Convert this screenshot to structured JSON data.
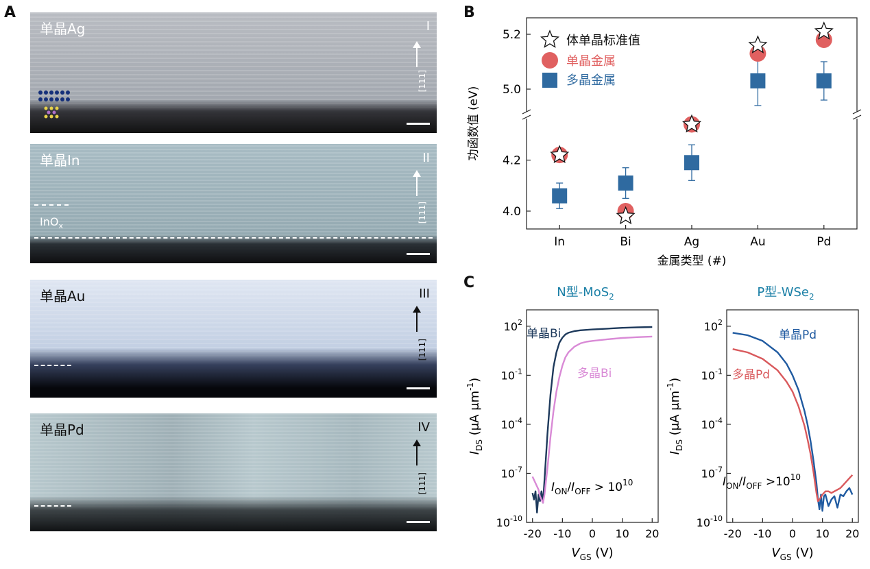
{
  "panel_labels": {
    "a": "A",
    "b": "B",
    "c": "C"
  },
  "panelA": {
    "images": [
      {
        "label": "单晶Ag",
        "roman": "I",
        "direction": "[111]"
      },
      {
        "label": "单晶In",
        "roman": "II",
        "direction": "[111]",
        "oxide": "InO",
        "oxide_sub": "x"
      },
      {
        "label": "单晶Au",
        "roman": "III",
        "direction": "[111]"
      },
      {
        "label": "单晶Pd",
        "roman": "IV",
        "direction": "[111]"
      }
    ]
  },
  "chart_data": [
    {
      "type": "scatter",
      "panel": "B",
      "title": "",
      "xlabel": "金属类型 (#)",
      "ylabel": "功函数值 (eV)",
      "categories": [
        "In",
        "Bi",
        "Ag",
        "Au",
        "Pd"
      ],
      "axis_break": true,
      "lower_ylim": [
        3.93,
        4.36
      ],
      "upper_ylim": [
        4.92,
        5.26
      ],
      "lower_ticks": [
        "4.0",
        "4.2"
      ],
      "upper_ticks": [
        "5.0",
        "5.2"
      ],
      "legend_position": "top-left",
      "series": [
        {
          "name": "体单晶标准值",
          "marker": "star",
          "values": [
            4.22,
            3.98,
            4.34,
            5.16,
            5.21
          ]
        },
        {
          "name": "单晶金属",
          "marker": "circle",
          "color": "#e06060",
          "values": [
            4.22,
            4.0,
            4.34,
            5.13,
            5.18
          ]
        },
        {
          "name": "多晶金属",
          "marker": "square",
          "color": "#2f6aa0",
          "values": [
            4.06,
            4.11,
            4.19,
            5.03,
            5.03
          ],
          "errors": [
            0.05,
            0.06,
            0.07,
            0.09,
            0.07
          ]
        }
      ]
    },
    {
      "type": "line",
      "panel": "C-left",
      "title": "N型-MoS",
      "title_sub": "2",
      "xlabel": "V",
      "xlabel_sub": "GS",
      "xlabel_unit": "(V)",
      "ylabel": "I",
      "ylabel_sub": "DS",
      "ylabel_unit": "(μA μm",
      "ylabel_sup": "-1",
      "ylabel_close": ")",
      "xlim": [
        -22,
        22
      ],
      "x_ticks": [
        "-20",
        "-10",
        "0",
        "10",
        "20"
      ],
      "ylim_log10": [
        -10,
        3
      ],
      "y_ticks": [
        {
          "base": "10",
          "exp": "2"
        },
        {
          "base": "10",
          "exp": "-1"
        },
        {
          "base": "10",
          "exp": "-4"
        },
        {
          "base": "10",
          "exp": "-7"
        },
        {
          "base": "10",
          "exp": "-10"
        }
      ],
      "annotation": {
        "i": "I",
        "on": "ON",
        "slash": "/I",
        "off": "OFF",
        "gt": " > 10",
        "exp": "10"
      },
      "series": [
        {
          "name": "单晶Bi",
          "color": "#1e3a5c",
          "x": [
            -20,
            -19.5,
            -19,
            -18.5,
            -18,
            -17.5,
            -17,
            -16.5,
            -16,
            -15,
            -14,
            -13,
            -12,
            -11,
            -10,
            -9,
            -8,
            -6,
            -4,
            0,
            5,
            10,
            15,
            20
          ],
          "log10y": [
            -8.2,
            -8.6,
            -8.1,
            -9.4,
            -8.3,
            -8.7,
            -8.1,
            -8.8,
            -7.4,
            -4.6,
            -2.2,
            -0.5,
            0.4,
            1.0,
            1.3,
            1.5,
            1.6,
            1.7,
            1.75,
            1.8,
            1.85,
            1.9,
            1.93,
            1.95
          ]
        },
        {
          "name": "多晶Bi",
          "color": "#d98ad6",
          "x": [
            -20,
            -19,
            -18,
            -17.5,
            -17,
            -16.5,
            -16,
            -15,
            -14,
            -13,
            -12,
            -11,
            -10,
            -9,
            -8,
            -6,
            -4,
            -2,
            0,
            5,
            10,
            15,
            20
          ],
          "log10y": [
            -7.2,
            -7.6,
            -8.0,
            -8.4,
            -8.6,
            -8.8,
            -8.3,
            -6.7,
            -4.8,
            -3.2,
            -2.0,
            -1.1,
            -0.4,
            0.1,
            0.4,
            0.75,
            0.95,
            1.05,
            1.1,
            1.2,
            1.28,
            1.33,
            1.37
          ]
        }
      ]
    },
    {
      "type": "line",
      "panel": "C-right",
      "title": "P型-WSe",
      "title_sub": "2",
      "xlabel": "V",
      "xlabel_sub": "GS",
      "xlabel_unit": "(V)",
      "ylabel": "I",
      "ylabel_sub": "DS",
      "ylabel_unit": "(μA μm",
      "ylabel_sup": "-1",
      "ylabel_close": ")",
      "xlim": [
        -22,
        22
      ],
      "x_ticks": [
        "-20",
        "-10",
        "0",
        "10",
        "20"
      ],
      "ylim_log10": [
        -10,
        3
      ],
      "y_ticks": [
        {
          "base": "10",
          "exp": "2"
        },
        {
          "base": "10",
          "exp": "-1"
        },
        {
          "base": "10",
          "exp": "-4"
        },
        {
          "base": "10",
          "exp": "-7"
        },
        {
          "base": "10",
          "exp": "-10"
        }
      ],
      "annotation": {
        "i": "I",
        "on": "ON",
        "slash": "/I",
        "off": "OFF",
        "gt": " >10",
        "exp": "10"
      },
      "series": [
        {
          "name": "单晶Pd",
          "color": "#1f5aa0",
          "x": [
            -20,
            -15,
            -10,
            -5,
            -2,
            0,
            2,
            4,
            5,
            6,
            7,
            8,
            8.5,
            9,
            9.5,
            10,
            10.5,
            11,
            12,
            13,
            14,
            15,
            16,
            17,
            18,
            19,
            20
          ],
          "log10y": [
            1.6,
            1.45,
            1.1,
            0.4,
            -0.3,
            -1.0,
            -1.9,
            -3.2,
            -4.0,
            -5.0,
            -6.2,
            -7.6,
            -8.6,
            -9.2,
            -8.3,
            -9.3,
            -8.4,
            -8.3,
            -9.0,
            -8.6,
            -8.4,
            -9.1,
            -8.3,
            -8.4,
            -8.1,
            -7.9,
            -8.3
          ]
        },
        {
          "name": "多晶Pd",
          "color": "#d9595c",
          "x": [
            -20,
            -15,
            -10,
            -5,
            -2,
            0,
            2,
            4,
            5,
            6,
            7,
            8,
            8.5,
            9,
            10,
            11,
            12,
            13,
            14,
            15,
            16,
            17,
            18,
            19,
            20
          ],
          "log10y": [
            0.6,
            0.4,
            0.0,
            -0.7,
            -1.4,
            -2.0,
            -2.9,
            -4.1,
            -4.9,
            -5.8,
            -6.9,
            -8.2,
            -8.7,
            -8.6,
            -8.3,
            -8.1,
            -8.1,
            -8.2,
            -8.1,
            -8.0,
            -7.9,
            -7.7,
            -7.5,
            -7.3,
            -7.1
          ]
        }
      ]
    }
  ]
}
